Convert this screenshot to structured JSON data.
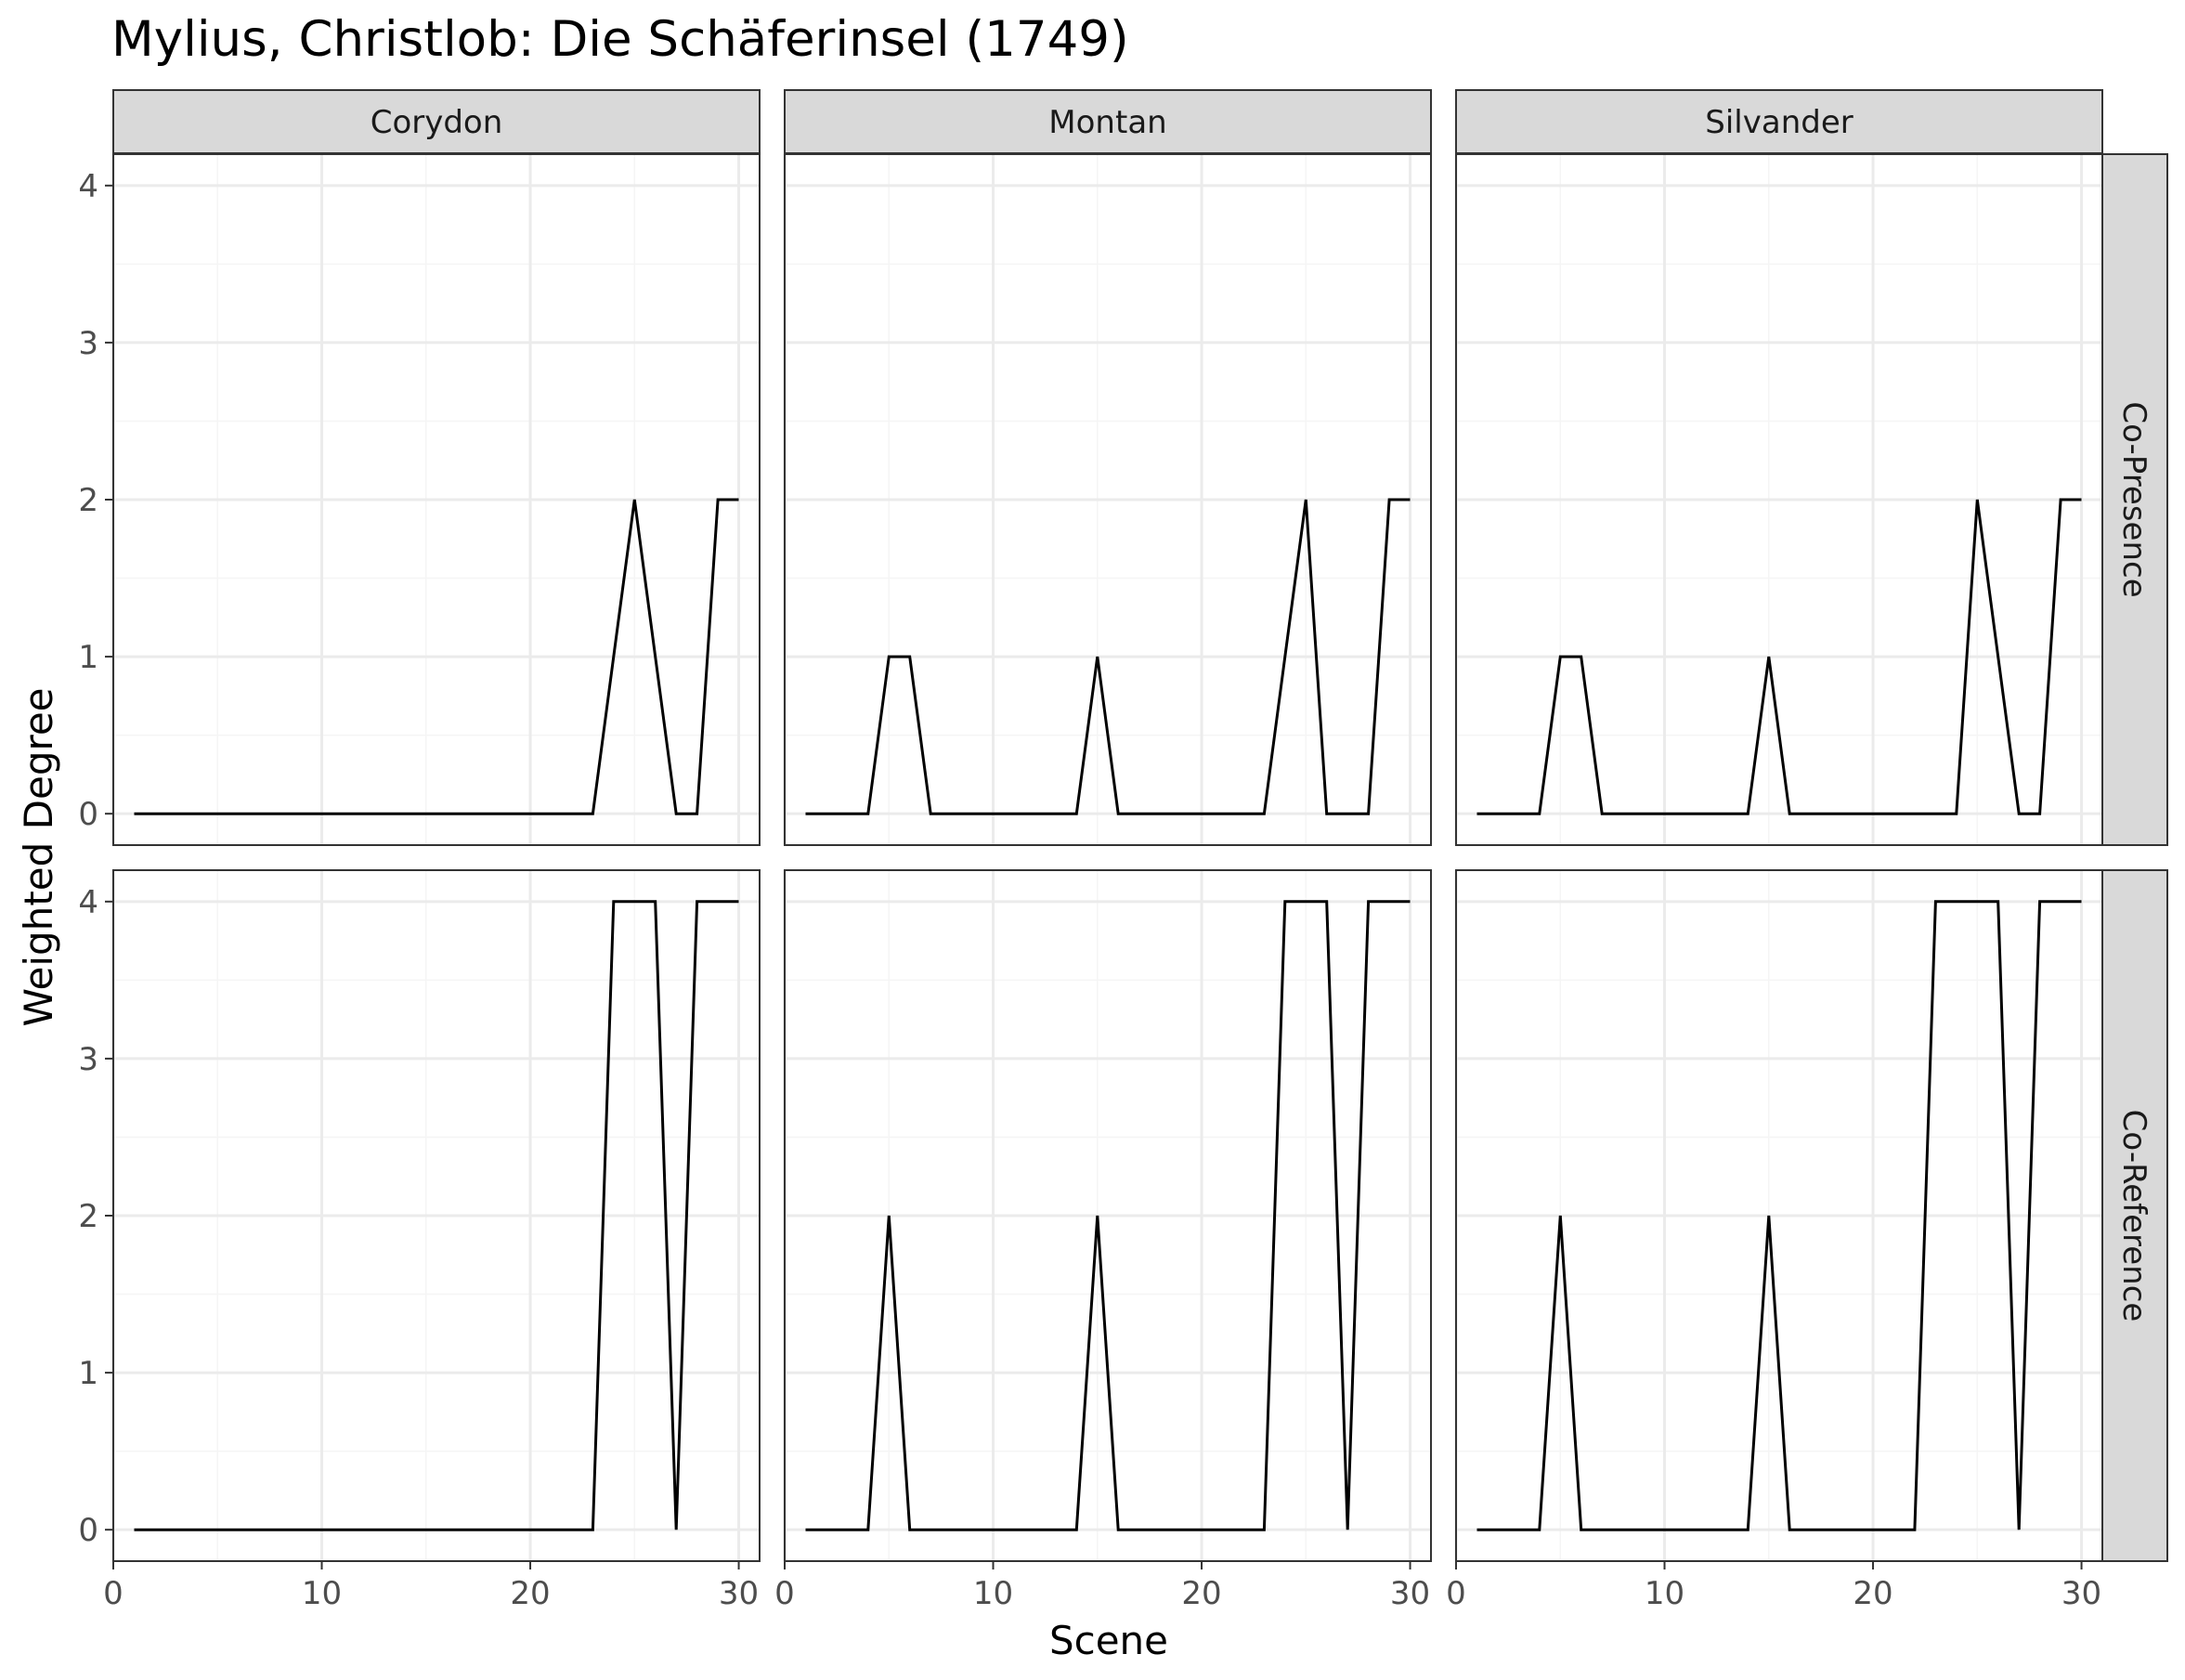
{
  "chart_data": {
    "type": "line",
    "title": "Mylius, Christlob: Die Schäferinsel (1749)",
    "xlabel": "Scene",
    "ylabel": "Weighted Degree",
    "xlim": [
      0,
      31
    ],
    "ylim": [
      -0.2,
      4.2
    ],
    "x_ticks": [
      0,
      10,
      20,
      30
    ],
    "y_ticks": [
      0,
      1,
      2,
      3,
      4
    ],
    "grid": true,
    "facet_columns": [
      "Corydon",
      "Montan",
      "Silvander"
    ],
    "facet_rows": [
      "Co-Presence",
      "Co-Reference"
    ],
    "x": [
      1,
      2,
      3,
      4,
      5,
      6,
      7,
      8,
      9,
      10,
      11,
      12,
      13,
      14,
      15,
      16,
      17,
      18,
      19,
      20,
      21,
      22,
      23,
      24,
      25,
      26,
      27,
      28,
      29,
      30
    ],
    "panels": [
      {
        "column": "Corydon",
        "row": "Co-Presence",
        "values": [
          0,
          0,
          0,
          0,
          0,
          0,
          0,
          0,
          0,
          0,
          0,
          0,
          0,
          0,
          0,
          0,
          0,
          0,
          0,
          0,
          0,
          0,
          0,
          1,
          2,
          1,
          0,
          0,
          2,
          2
        ]
      },
      {
        "column": "Montan",
        "row": "Co-Presence",
        "values": [
          0,
          0,
          0,
          0,
          1,
          1,
          0,
          0,
          0,
          0,
          0,
          0,
          0,
          0,
          1,
          0,
          0,
          0,
          0,
          0,
          0,
          0,
          0,
          1,
          2,
          0,
          0,
          0,
          2,
          2
        ]
      },
      {
        "column": "Silvander",
        "row": "Co-Presence",
        "values": [
          0,
          0,
          0,
          0,
          1,
          1,
          0,
          0,
          0,
          0,
          0,
          0,
          0,
          0,
          1,
          0,
          0,
          0,
          0,
          0,
          0,
          0,
          0,
          0,
          2,
          1,
          0,
          0,
          2,
          2
        ]
      },
      {
        "column": "Corydon",
        "row": "Co-Reference",
        "values": [
          0,
          0,
          0,
          0,
          0,
          0,
          0,
          0,
          0,
          0,
          0,
          0,
          0,
          0,
          0,
          0,
          0,
          0,
          0,
          0,
          0,
          0,
          0,
          4,
          4,
          4,
          0,
          4,
          4,
          4
        ]
      },
      {
        "column": "Montan",
        "row": "Co-Reference",
        "values": [
          0,
          0,
          0,
          0,
          2,
          0,
          0,
          0,
          0,
          0,
          0,
          0,
          0,
          0,
          2,
          0,
          0,
          0,
          0,
          0,
          0,
          0,
          0,
          4,
          4,
          4,
          0,
          4,
          4,
          4
        ]
      },
      {
        "column": "Silvander",
        "row": "Co-Reference",
        "values": [
          0,
          0,
          0,
          0,
          2,
          0,
          0,
          0,
          0,
          0,
          0,
          0,
          0,
          0,
          2,
          0,
          0,
          0,
          0,
          0,
          0,
          0,
          4,
          4,
          4,
          4,
          0,
          4,
          4,
          4
        ]
      }
    ],
    "colors": {
      "line": "#000000",
      "panel_border": "#333333",
      "strip_fill": "#d9d9d9",
      "grid_major": "#ebebeb",
      "grid_minor": "#f5f5f5",
      "tick_text": "#4d4d4d"
    }
  }
}
